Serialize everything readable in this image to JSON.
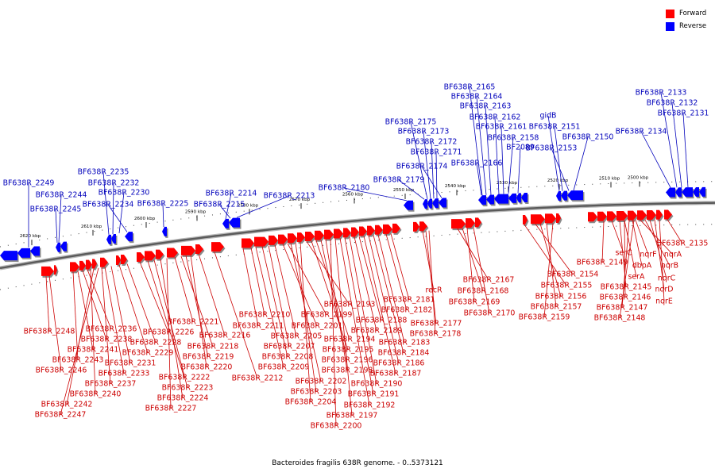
{
  "legend": {
    "forward_label": "Forward",
    "reverse_label": "Reverse",
    "forward_color": "#ff0000",
    "reverse_color": "#0000ff"
  },
  "caption": "Bacteroides fragilis 638R genome. - 0..5373121",
  "scale": {
    "ticks": [
      "2620 kbp",
      "2610 kbp",
      "2600 kbp",
      "2590 kbp",
      "2580 kbp",
      "2570 kbp",
      "2560 kbp",
      "2550 kbp",
      "2540 kbp",
      "2530 kbp",
      "2520 kbp",
      "2510 kbp",
      "2500 kbp"
    ]
  },
  "reverse_genes": [
    "BF638R_2249",
    "BF638R_2244",
    "BF638R_2245",
    "BF638R_2235",
    "BF638R_2232",
    "BF638R_2230",
    "BF638R_2234",
    "BF638R_2225",
    "BF638R_2214",
    "BF638R_2215",
    "BF638R_2213",
    "BF638R_2180",
    "BF638R_2179",
    "BF638R_2175",
    "BF638R_2173",
    "BF638R_2172",
    "BF638R_2171",
    "BF638R_2174",
    "BF638R_2166",
    "BF638R_2165",
    "BF638R_2164",
    "BF638R_2163",
    "BF638R_2162",
    "BF638R_2161",
    "BF638R_2158",
    "BF2089",
    "gidB",
    "BF638R_2151",
    "BF638R_2153",
    "BF638R_2150",
    "BF638R_2134",
    "BF638R_2133",
    "BF638R_2132",
    "BF638R_2131"
  ],
  "forward_genes": [
    "BF638R_2248",
    "BF638R_2246",
    "BF638R_2243",
    "BF638R_2241",
    "BF638R_2238",
    "BF638R_2236",
    "BF638R_2240",
    "BF638R_2242",
    "BF638R_2247",
    "BF638R_2237",
    "BF638R_2233",
    "BF638R_2231",
    "BF638R_2229",
    "BF638R_2228",
    "BF638R_2226",
    "BF638R_2222",
    "BF638R_2223",
    "BF638R_2224",
    "BF638R_2227",
    "BF638R_2221",
    "BF638R_2218",
    "BF638R_2219",
    "BF638R_2220",
    "BF638R_2216",
    "BF638R_2212",
    "BF638R_2211",
    "BF638R_2210",
    "BF638R_2209",
    "BF638R_2208",
    "BF638R_2207",
    "BF638R_2205",
    "BF638R_2201",
    "BF638R_2199",
    "BF638R_2202",
    "BF638R_2203",
    "BF638R_2204",
    "BF638R_2193",
    "BF638R_2195",
    "BF638R_2194",
    "BF638R_2196",
    "BF638R_2198",
    "BF638R_2200",
    "BF638R_2197",
    "BF638R_2192",
    "BF638R_2191",
    "BF638R_2190",
    "BF638R_2189",
    "BF638R_2188",
    "BF638R_2187",
    "BF638R_2186",
    "BF638R_2184",
    "BF638R_2183",
    "BF638R_2182",
    "BF638R_2181",
    "recR",
    "BF638R_2177",
    "BF638R_2178",
    "BF638R_2167",
    "BF638R_2168",
    "BF638R_2169",
    "BF638R_2170",
    "BF638R_2155",
    "BF638R_2154",
    "BF638R_2156",
    "BF638R_2157",
    "BF638R_2159",
    "BF638R_2149",
    "serA",
    "serC",
    "dbpA",
    "nqrF",
    "nqrA",
    "nqrB",
    "nqrC",
    "nqrD",
    "nqrE",
    "BF638R_2145",
    "BF638R_2146",
    "BF638R_2147",
    "BF638R_2148",
    "BF638R_2135"
  ]
}
